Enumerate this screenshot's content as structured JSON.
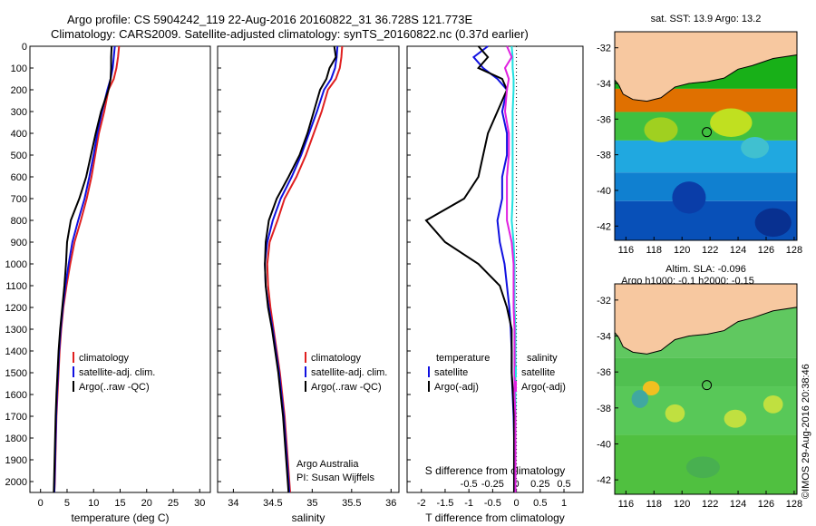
{
  "header": {
    "title_line1": "Argo profile: CS 5904242_119 22-Aug-2016 20160822_31 36.728S 121.773E",
    "title_line2": "Climatology: CARS2009. Satellite-adjusted climatology: synTS_20160822.nc (0.37d earlier)"
  },
  "colors": {
    "climatology": "#e02020",
    "satellite": "#1010e0",
    "argo": "#000000",
    "sat_salinity": "#20e0e0",
    "argo_adj_salinity": "#e020e0",
    "land": "#f7c8a0"
  },
  "legend": {
    "climatology": "climatology",
    "satellite_clim": "satellite-adj. clim.",
    "argo_raw": "Argo(..raw -QC)",
    "temperature": "temperature",
    "salinity": "salinity",
    "satellite": "satellite",
    "argo_adj": "Argo(-adj)"
  },
  "credits": {
    "line1": "Argo Australia",
    "line2": "PI: Susan Wijffels",
    "imos": "©IMOS 29-Aug-2016 20:38:46"
  },
  "maps": {
    "sst_title": "sat. SST: 13.9 Argo: 13.2",
    "sla_title1": "Altim. SLA: -0.096",
    "sla_title2": "Argo h1000: -0.1 h2000: -0.15",
    "x_ticks": [
      "116",
      "118",
      "120",
      "122",
      "124",
      "126",
      "128"
    ],
    "y_ticks": [
      "-32",
      "-34",
      "-36",
      "-38",
      "-40",
      "-42"
    ],
    "float_lon": 121.77,
    "float_lat": -36.73
  },
  "chart_data": [
    {
      "type": "line",
      "xlabel": "temperature (deg C)",
      "ylabel": "",
      "xlim": [
        -2,
        32
      ],
      "ylim": [
        2050,
        0
      ],
      "xticks": [
        "0",
        "5",
        "10",
        "15",
        "20",
        "25",
        "30"
      ],
      "yticks": [
        "0",
        "100",
        "200",
        "300",
        "400",
        "500",
        "600",
        "700",
        "800",
        "900",
        "1000",
        "1100",
        "1200",
        "1300",
        "1400",
        "1500",
        "1600",
        "1700",
        "1800",
        "1900",
        "2000"
      ],
      "depth": [
        0,
        50,
        100,
        150,
        200,
        300,
        400,
        500,
        600,
        700,
        800,
        900,
        1000,
        1100,
        1200,
        1300,
        1400,
        1500,
        1600,
        1700,
        1800,
        1900,
        2000,
        2050
      ],
      "series": [
        {
          "name": "climatology",
          "values": [
            14.8,
            14.6,
            14.3,
            13.8,
            12.8,
            12.0,
            11.0,
            10.3,
            9.6,
            8.7,
            7.6,
            6.4,
            5.6,
            4.9,
            4.3,
            3.9,
            3.6,
            3.4,
            3.2,
            3.0,
            2.9,
            2.8,
            2.7,
            2.6
          ]
        },
        {
          "name": "satellite-adj. clim.",
          "values": [
            14.0,
            13.8,
            13.6,
            13.2,
            12.6,
            11.6,
            10.7,
            10.0,
            9.2,
            8.3,
            7.1,
            6.0,
            5.3,
            4.7,
            4.2,
            3.8,
            3.5,
            3.3,
            3.1,
            2.95,
            2.85,
            2.75,
            2.65,
            2.6
          ]
        },
        {
          "name": "Argo(..raw -QC)",
          "values": [
            13.4,
            13.3,
            13.3,
            13.2,
            12.8,
            11.4,
            10.4,
            9.5,
            8.6,
            7.3,
            5.7,
            5.0,
            4.8,
            4.5,
            4.1,
            3.7,
            3.4,
            3.2,
            3.0,
            2.85,
            2.75,
            2.65,
            2.55,
            2.5
          ]
        }
      ]
    },
    {
      "type": "line",
      "xlabel": "salinity",
      "xlim": [
        33.8,
        36.1
      ],
      "ylim": [
        2050,
        0
      ],
      "xticks": [
        "34",
        "34.5",
        "35",
        "35.5",
        "36"
      ],
      "depth": [
        0,
        50,
        100,
        150,
        200,
        300,
        400,
        500,
        600,
        700,
        800,
        900,
        1000,
        1100,
        1200,
        1300,
        1400,
        1500,
        1600,
        1700,
        1800,
        1900,
        2000,
        2050
      ],
      "series": [
        {
          "name": "climatology",
          "values": [
            35.38,
            35.37,
            35.35,
            35.3,
            35.2,
            35.12,
            35.02,
            34.92,
            34.8,
            34.65,
            34.56,
            34.46,
            34.43,
            34.44,
            34.47,
            34.51,
            34.55,
            34.59,
            34.62,
            34.65,
            34.67,
            34.69,
            34.71,
            34.72
          ]
        },
        {
          "name": "satellite-adj. clim.",
          "values": [
            35.32,
            35.31,
            35.29,
            35.24,
            35.15,
            35.06,
            34.96,
            34.86,
            34.74,
            34.6,
            34.5,
            34.43,
            34.4,
            34.41,
            34.45,
            34.5,
            34.54,
            34.58,
            34.61,
            34.64,
            34.66,
            34.68,
            34.7,
            34.71
          ]
        },
        {
          "name": "Argo(..raw -QC)",
          "values": [
            35.28,
            35.3,
            35.22,
            35.18,
            35.1,
            35.02,
            34.94,
            34.84,
            34.7,
            34.55,
            34.45,
            34.41,
            34.4,
            34.41,
            34.44,
            34.49,
            34.53,
            34.57,
            34.6,
            34.63,
            34.65,
            34.67,
            34.69,
            34.7
          ]
        }
      ]
    },
    {
      "type": "line",
      "xlabel": "T difference from climatology",
      "xlabel_top": "S difference from climatology",
      "xlim": [
        -2.3,
        1.4
      ],
      "ylim": [
        2050,
        0
      ],
      "xticks": [
        "-2",
        "-1.5",
        "-1",
        "-0.5",
        "0",
        "0.5",
        "1"
      ],
      "xticks_top": [
        "-0.5",
        "-0.25",
        "0",
        "0.25",
        "0.5"
      ],
      "depth": [
        0,
        50,
        100,
        150,
        200,
        300,
        400,
        500,
        600,
        700,
        800,
        900,
        1000,
        1100,
        1200,
        1300,
        1400,
        1500,
        1600,
        1700,
        1800,
        1900,
        2000,
        2050
      ],
      "series": [
        {
          "name": "temperature satellite",
          "values": [
            -0.6,
            -0.9,
            -0.7,
            -0.4,
            -0.2,
            -0.3,
            -0.2,
            -0.2,
            -0.3,
            -0.3,
            -0.4,
            -0.35,
            -0.25,
            -0.2,
            -0.15,
            -0.12,
            -0.1,
            -0.1,
            -0.08,
            -0.06,
            -0.05,
            -0.05,
            -0.05,
            -0.05
          ]
        },
        {
          "name": "temperature Argo(-adj)",
          "values": [
            -0.8,
            -0.6,
            -0.8,
            -0.3,
            -0.2,
            -0.4,
            -0.6,
            -0.7,
            -0.8,
            -1.1,
            -1.9,
            -1.5,
            -0.8,
            -0.35,
            -0.2,
            -0.1,
            -0.1,
            -0.1,
            -0.07,
            -0.05,
            -0.05,
            -0.05,
            -0.05,
            -0.05
          ]
        },
        {
          "name": "salinity satellite",
          "values": [
            -0.05,
            -0.04,
            -0.04,
            -0.03,
            -0.03,
            -0.04,
            -0.04,
            -0.04,
            -0.04,
            -0.04,
            -0.05,
            -0.03,
            -0.02,
            -0.02,
            -0.02,
            -0.01,
            -0.01,
            -0.01,
            -0.01,
            -0.01,
            -0.01,
            -0.01,
            -0.01,
            -0.01
          ]
        },
        {
          "name": "salinity Argo(-adj)",
          "values": [
            -0.1,
            -0.05,
            -0.12,
            -0.08,
            -0.1,
            -0.12,
            -0.08,
            -0.08,
            -0.1,
            -0.1,
            -0.1,
            -0.05,
            -0.03,
            -0.03,
            -0.03,
            -0.02,
            -0.02,
            -0.02,
            -0.02,
            -0.01,
            -0.01,
            -0.01,
            -0.01,
            -0.01
          ]
        }
      ]
    }
  ]
}
